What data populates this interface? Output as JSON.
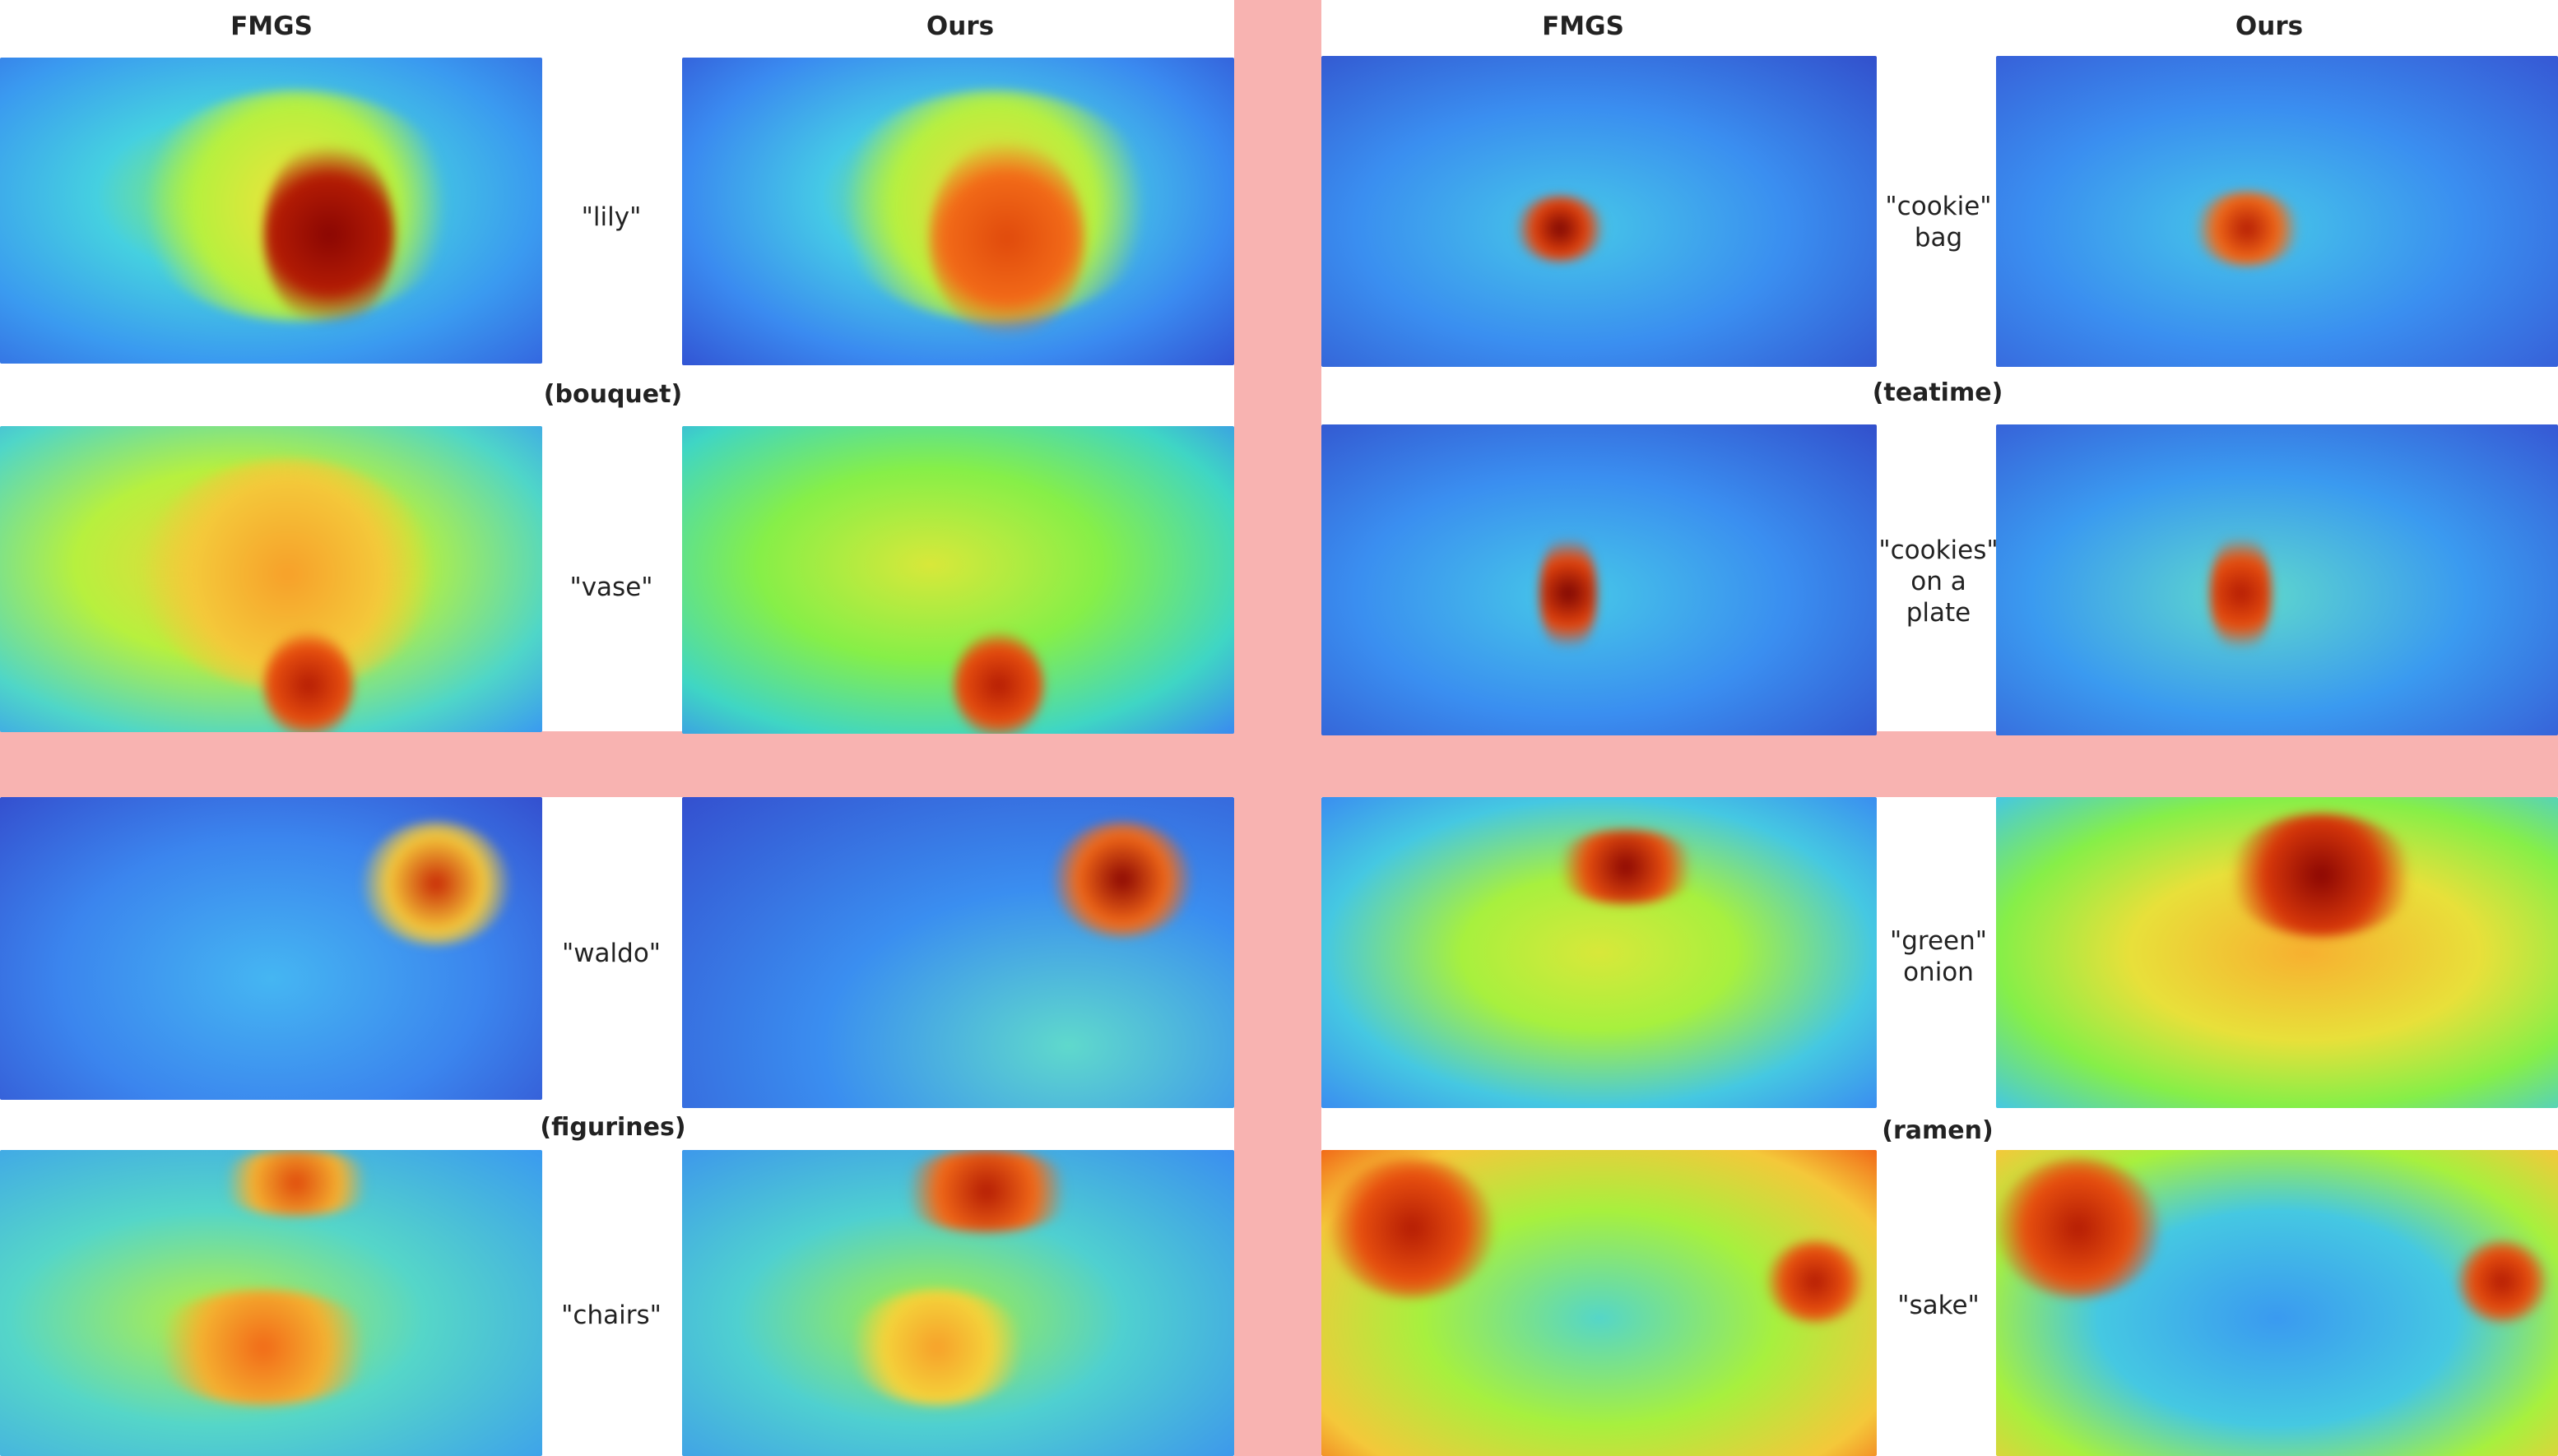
{
  "columns": {
    "left_method": "FMGS",
    "right_method": "Ours",
    "left_method_2": "FMGS",
    "right_method_2": "Ours"
  },
  "scenes": [
    {
      "name": "(bouquet)",
      "queries": [
        "\"lily\"",
        "\"vase\""
      ]
    },
    {
      "name": "(teatime)",
      "queries": [
        "\"cookie\"\nbag",
        "\"cookies\"\non a\nplate"
      ]
    },
    {
      "name": "(figurines)",
      "queries": [
        "\"waldo\"",
        "\"chairs\""
      ]
    },
    {
      "name": "(ramen)",
      "queries": [
        "\"green\"\nonion",
        "\"sake\""
      ]
    }
  ],
  "colors": {
    "separator": "#f8b3b1",
    "colormap": [
      "#30123b",
      "#3b5bd9",
      "#38a8f5",
      "#2ee8c0",
      "#a7f83c",
      "#f4d23a",
      "#f9771c",
      "#b41c04",
      "#7a0403"
    ]
  }
}
